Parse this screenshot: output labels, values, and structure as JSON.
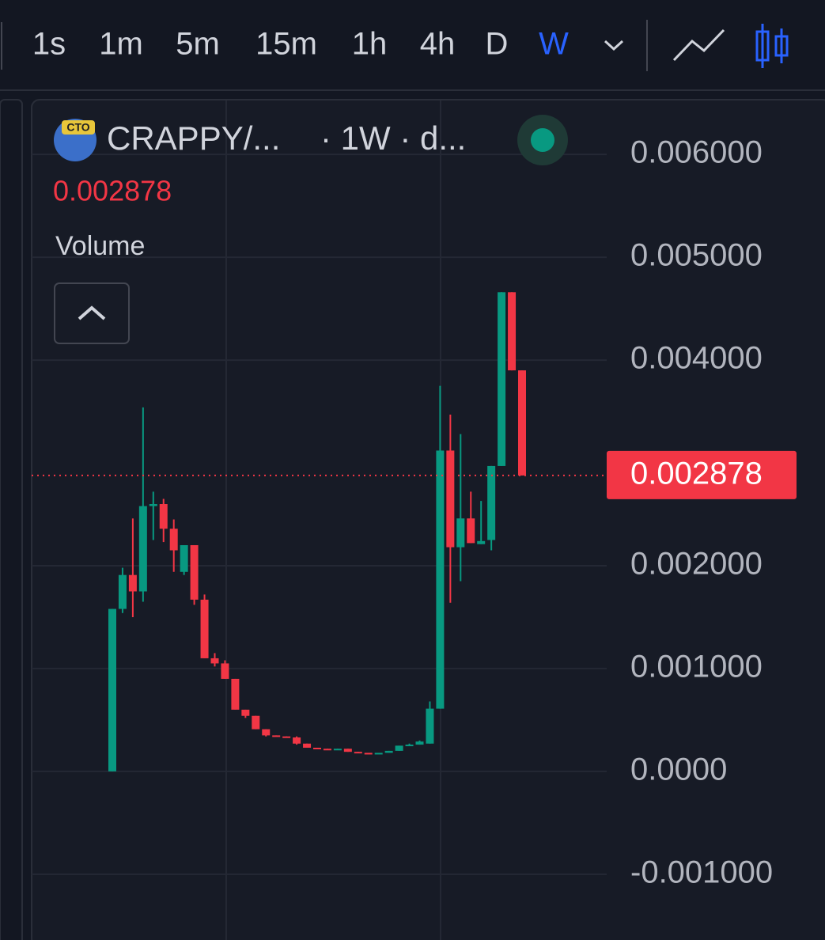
{
  "toolbar": {
    "intervals": [
      "1s",
      "1m",
      "5m",
      "15m",
      "1h",
      "4h",
      "D",
      "W"
    ],
    "active": 7
  },
  "header": {
    "badge": "CTO",
    "symbol": "CRAPPY/...",
    "interval": "· 1W · d...",
    "indicator": "Volume"
  },
  "chart_data": {
    "type": "candlestick",
    "open": [
      0,
      0.00158,
      0.00191,
      0.00175,
      0.00258,
      0.0026,
      0.00236,
      0.00194,
      0.0022,
      0.00167,
      0.0011,
      0.00105,
      0.0009,
      0.0006,
      0.00054,
      0.00041,
      0.00035,
      0.00034,
      0.00033,
      0.00027,
      0.00023,
      0.00022,
      0.00021,
      0.00022,
      0.00019,
      0.00018,
      0.00017,
      0.00018,
      0.0002,
      0.00025,
      0.00026,
      0.00027,
      0.00061,
      0.00312,
      0.00218,
      0.00246,
      0.00221,
      0.00225,
      0.00297,
      0.00466,
      0.0039
    ],
    "high": [
      0.00158,
      0.00198,
      0.00246,
      0.00354,
      0.00272,
      0.00265,
      0.00245,
      0.0022,
      0.0022,
      0.00172,
      0.00115,
      0.00108,
      0.0009,
      0.0006,
      0.00054,
      0.00041,
      0.00035,
      0.00034,
      0.00034,
      0.00027,
      0.00023,
      0.00022,
      0.00022,
      0.00022,
      0.00019,
      0.00018,
      0.00018,
      0.0002,
      0.00025,
      0.00027,
      0.0003,
      0.00068,
      0.00375,
      0.00347,
      0.00328,
      0.00272,
      0.00263,
      0.00297,
      0.00466,
      0.00466,
      0.0039
    ],
    "low": [
      0,
      0.00154,
      0.0015,
      0.00165,
      0.00225,
      0.00223,
      0.00194,
      0.00191,
      0.00162,
      0.0011,
      0.00102,
      0.0009,
      0.0006,
      0.00052,
      0.00041,
      0.00034,
      0.00034,
      0.00033,
      0.00026,
      0.00023,
      0.00022,
      0.00021,
      0.00021,
      0.00019,
      0.00018,
      0.00017,
      0.00017,
      0.00018,
      0.0002,
      0.00025,
      0.00026,
      0.00027,
      0.00061,
      0.00164,
      0.00185,
      0.00222,
      0.00221,
      0.00215,
      0.00297,
      0.0039,
      0.002878
    ],
    "close": [
      0.00158,
      0.00191,
      0.00175,
      0.00258,
      0.0026,
      0.00236,
      0.00215,
      0.0022,
      0.00167,
      0.0011,
      0.00105,
      0.0009,
      0.0006,
      0.00054,
      0.00041,
      0.00035,
      0.00034,
      0.00033,
      0.00027,
      0.00023,
      0.00022,
      0.00021,
      0.00022,
      0.00019,
      0.00018,
      0.00017,
      0.00018,
      0.0002,
      0.00025,
      0.00026,
      0.00029,
      0.00061,
      0.00312,
      0.00218,
      0.00246,
      0.00222,
      0.00224,
      0.00297,
      0.00466,
      0.0039,
      0.002878
    ],
    "up_color": "#089981",
    "down_color": "#f23645",
    "ylim": [
      -0.00164,
      0.00654
    ],
    "yticks": [
      {
        "value": 0.006,
        "label": "0.006000"
      },
      {
        "value": 0.005,
        "label": "0.005000"
      },
      {
        "value": 0.004,
        "label": "0.004000"
      },
      {
        "value": 0.002,
        "label": "0.002000"
      },
      {
        "value": 0.001,
        "label": "0.001000"
      },
      {
        "value": 0,
        "label": "0.0000"
      },
      {
        "value": -0.001,
        "label": "-0.001000"
      }
    ],
    "grid": true,
    "last_price": {
      "value": 0.002878,
      "label": "0.002878"
    }
  }
}
